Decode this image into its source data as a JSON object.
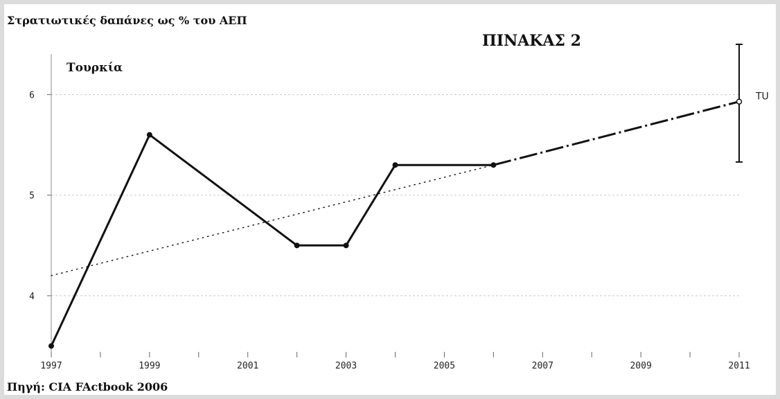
{
  "chart_data": {
    "type": "line",
    "title": "Στρατιωτικές δαπάνες ως % του ΑΕΠ",
    "table_label": "ΠΙΝΑΚΑΣ 2",
    "country_label": "Τουρκία",
    "source": "Πηγή: CIA FActbook 2006",
    "x_ticks_labeled": [
      1997,
      1999,
      2001,
      2003,
      2005,
      2007,
      2009,
      2011
    ],
    "x_ticks_minor": [
      1998,
      2000,
      2002,
      2004,
      2006,
      2008,
      2010
    ],
    "y_ticks": [
      4,
      5,
      6
    ],
    "xlim": [
      1997,
      2011
    ],
    "ylim": [
      3.4,
      6.5
    ],
    "grid": true,
    "series": [
      {
        "name": "TU",
        "style": "solid",
        "color": "#111111",
        "x": [
          1997,
          1999,
          2002,
          2003,
          2004,
          2006
        ],
        "y": [
          3.5,
          5.6,
          4.5,
          4.5,
          5.3,
          5.3
        ]
      },
      {
        "style": "trend-dotted",
        "color": "#111111",
        "x": [
          1997,
          2006
        ],
        "y": [
          4.2,
          5.3
        ]
      },
      {
        "style": "forecast-dashed",
        "color": "#111111",
        "x": [
          2006,
          2011
        ],
        "y": [
          5.3,
          5.93
        ]
      }
    ],
    "interval_2011": {
      "x": 2011,
      "low": 5.33,
      "high": 6.5,
      "point": 5.93
    },
    "end_label": "TU"
  }
}
